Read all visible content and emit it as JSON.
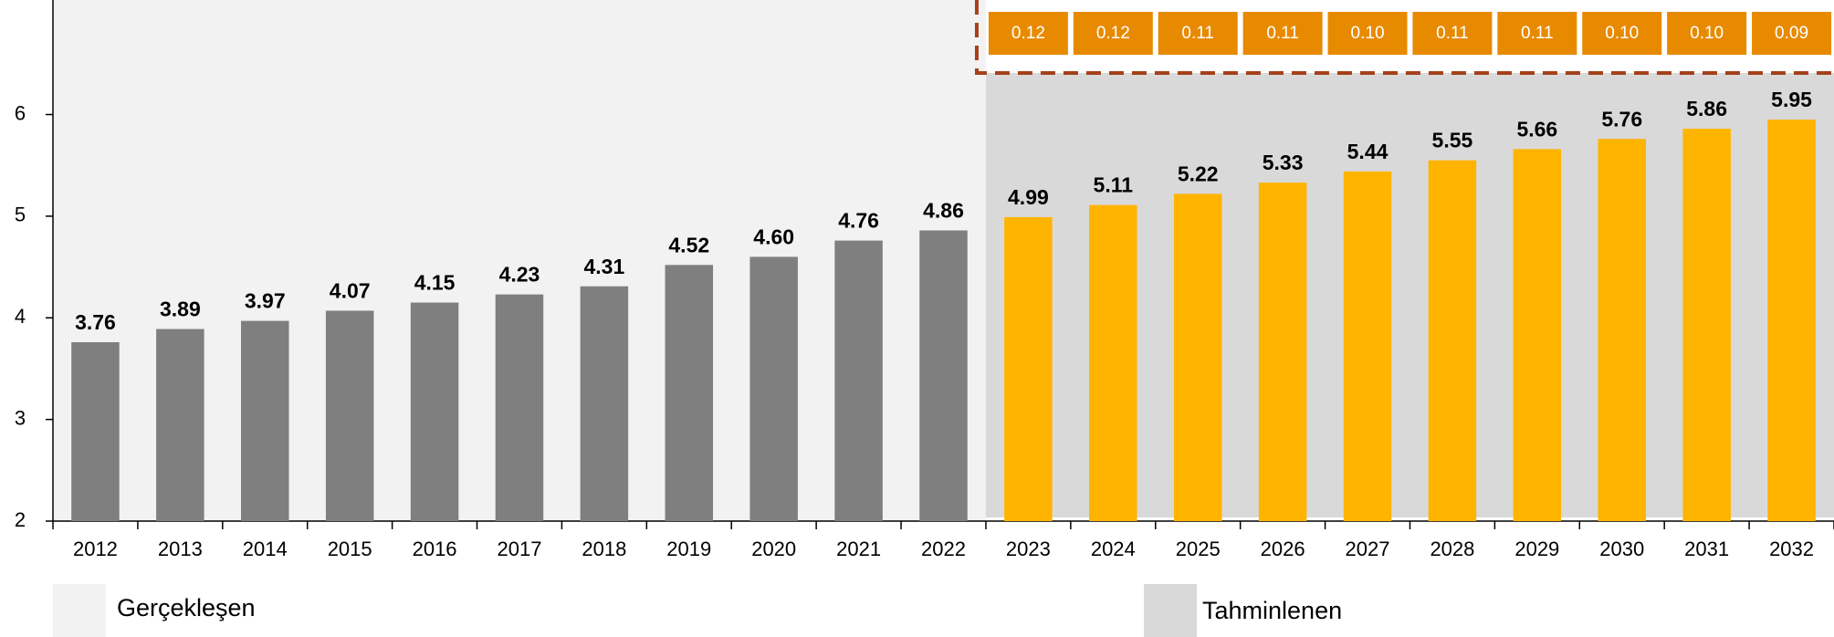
{
  "chart_data": {
    "type": "bar",
    "categories": [
      "2012",
      "2013",
      "2014",
      "2015",
      "2016",
      "2017",
      "2018",
      "2019",
      "2020",
      "2021",
      "2022",
      "2023",
      "2024",
      "2025",
      "2026",
      "2027",
      "2028",
      "2029",
      "2030",
      "2031",
      "2032"
    ],
    "series": [
      {
        "name": "Gerçekleşen",
        "color": "#7f7f7f",
        "region_color": "#f2f2f2",
        "values": [
          3.76,
          3.89,
          3.97,
          4.07,
          4.15,
          4.23,
          4.31,
          4.52,
          4.6,
          4.76,
          4.86,
          null,
          null,
          null,
          null,
          null,
          null,
          null,
          null,
          null,
          null
        ],
        "value_labels": [
          "3.76",
          "3.89",
          "3.97",
          "4.07",
          "4.15",
          "4.23",
          "4.31",
          "4.52",
          "4.60",
          "4.76",
          "4.86",
          null,
          null,
          null,
          null,
          null,
          null,
          null,
          null,
          null,
          null
        ]
      },
      {
        "name": "Tahminlenen",
        "color": "#ffb400",
        "region_color": "#d9d9d9",
        "values": [
          null,
          null,
          null,
          null,
          null,
          null,
          null,
          null,
          null,
          null,
          null,
          4.99,
          5.11,
          5.22,
          5.33,
          5.44,
          5.55,
          5.66,
          5.76,
          5.86,
          5.95
        ],
        "value_labels": [
          null,
          null,
          null,
          null,
          null,
          null,
          null,
          null,
          null,
          null,
          null,
          "4.99",
          "5.11",
          "5.22",
          "5.33",
          "5.44",
          "5.55",
          "5.66",
          "5.76",
          "5.86",
          "5.95"
        ],
        "growth": [
          null,
          null,
          null,
          null,
          null,
          null,
          null,
          null,
          null,
          null,
          null,
          0.12,
          0.12,
          0.11,
          0.11,
          0.1,
          0.11,
          0.11,
          0.1,
          0.1,
          0.09
        ],
        "growth_labels": [
          null,
          null,
          null,
          null,
          null,
          null,
          null,
          null,
          null,
          null,
          null,
          "0.12",
          "0.12",
          "0.11",
          "0.11",
          "0.10",
          "0.11",
          "0.11",
          "0.10",
          "0.10",
          "0.09"
        ],
        "growth_color": "#e88a00"
      }
    ],
    "ylim": [
      2,
      7.1
    ],
    "yticks": [
      2,
      3,
      4,
      5,
      6
    ]
  }
}
